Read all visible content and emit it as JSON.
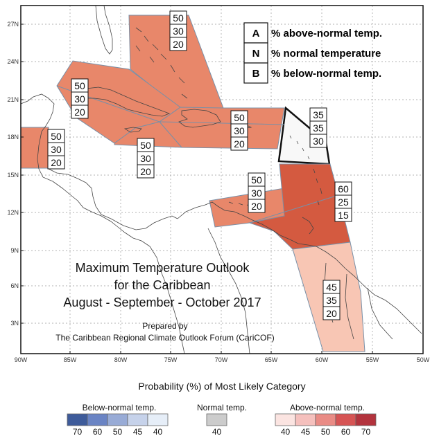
{
  "title_lines": [
    "Maximum Temperature Outlook",
    "for the Caribbean",
    "August - September - October 2017"
  ],
  "credit_lines": [
    "Prepared by",
    "The Caribbean Regional Climate Outlook Forum (CariCOF)"
  ],
  "key": [
    {
      "letter": "A",
      "text": "% above-normal temp."
    },
    {
      "letter": "N",
      "text": "% normal temperature"
    },
    {
      "letter": "B",
      "text": "% below-normal temp."
    }
  ],
  "lat_ticks": [
    "27N",
    "24N",
    "21N",
    "18N",
    "15N",
    "12N",
    "9N",
    "6N",
    "3N"
  ],
  "lon_ticks": [
    "90W",
    "85W",
    "80W",
    "75W",
    "70W",
    "65W",
    "60W",
    "55W",
    "50W"
  ],
  "regions": [
    {
      "name": "bahamas",
      "values": [
        "50",
        "30",
        "20"
      ],
      "color": "#e8876a"
    },
    {
      "name": "cuba-jamaica",
      "values": [
        "50",
        "30",
        "20"
      ],
      "color": "#e8876a"
    },
    {
      "name": "belize",
      "values": [
        "50",
        "30",
        "20"
      ],
      "color": "#e8876a"
    },
    {
      "name": "central-caribbean",
      "values": [
        "50",
        "30",
        "20"
      ],
      "color": "#e8876a"
    },
    {
      "name": "hispaniola-puerto-rico",
      "values": [
        "50",
        "30",
        "20"
      ],
      "color": "#e8876a"
    },
    {
      "name": "leeward-islands",
      "values": [
        "35",
        "35",
        "30"
      ],
      "color": "#f8f8f8"
    },
    {
      "name": "abc-islands",
      "values": [
        "50",
        "30",
        "20"
      ],
      "color": "#e8876a"
    },
    {
      "name": "windward-islands-trinidad",
      "values": [
        "60",
        "25",
        "15"
      ],
      "color": "#d45a40"
    },
    {
      "name": "guianas",
      "values": [
        "45",
        "35",
        "20"
      ],
      "color": "#f8c6b4"
    }
  ],
  "colorbar": {
    "title": "Probability (%) of Most Likely Category",
    "groups": [
      {
        "label": "Below-normal temp.",
        "colors": [
          "#3e5b9a",
          "#6a84c4",
          "#98abd6",
          "#c6d2ea",
          "#e6eef8"
        ],
        "ticks": [
          "70",
          "60",
          "50",
          "45",
          "40"
        ]
      },
      {
        "label": "Normal temp.",
        "colors": [
          "#cccccc"
        ],
        "ticks": [
          "40"
        ]
      },
      {
        "label": "Above-normal temp.",
        "colors": [
          "#fbe4e1",
          "#f5c0bd",
          "#e98b85",
          "#d65454",
          "#b3333d"
        ],
        "ticks": [
          "40",
          "45",
          "50",
          "60",
          "70"
        ]
      }
    ]
  }
}
